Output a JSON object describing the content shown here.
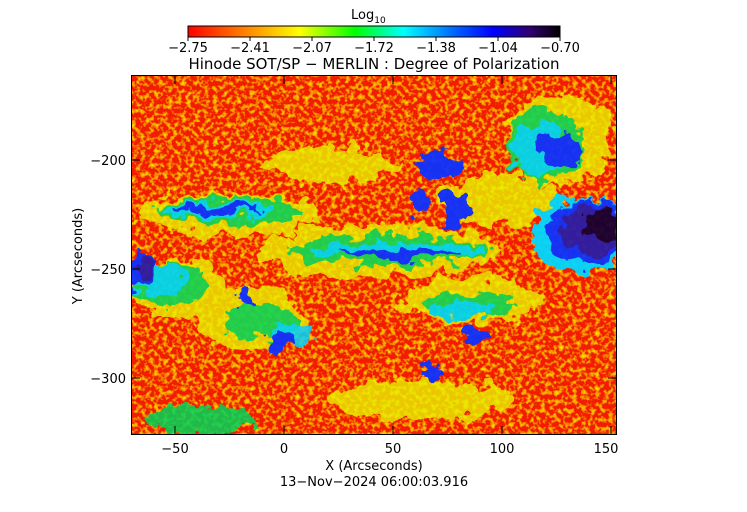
{
  "colorbar": {
    "label_main": "Log",
    "label_sub": "10",
    "ticks": [
      "−2.75",
      "−2.41",
      "−2.07",
      "−1.72",
      "−1.38",
      "−1.04",
      "−0.70"
    ],
    "colors": [
      "#ff0000",
      "#ff8000",
      "#ffff00",
      "#00ff00",
      "#00ffff",
      "#0080ff",
      "#0000ff",
      "#000070",
      "#000000"
    ]
  },
  "title": "Hinode SOT/SP − MERLIN : Degree of Polarization",
  "x_axis": {
    "label": "X (Arcseconds)",
    "ticks": [
      "−50",
      "0",
      "50",
      "100",
      "150"
    ]
  },
  "y_axis": {
    "label": "Y (Arcseconds)",
    "ticks": [
      "−200",
      "−250",
      "−300"
    ]
  },
  "timestamp": "13−Nov−2024 06:00:03.916",
  "map_colors": {
    "red": "#f21d05",
    "orange": "#ff7a00",
    "yellow": "#e8f000",
    "green": "#00d45a",
    "cyan": "#00d8ff",
    "blue": "#1030ff",
    "navy": "#2a1aa6",
    "dark": "#150030"
  }
}
